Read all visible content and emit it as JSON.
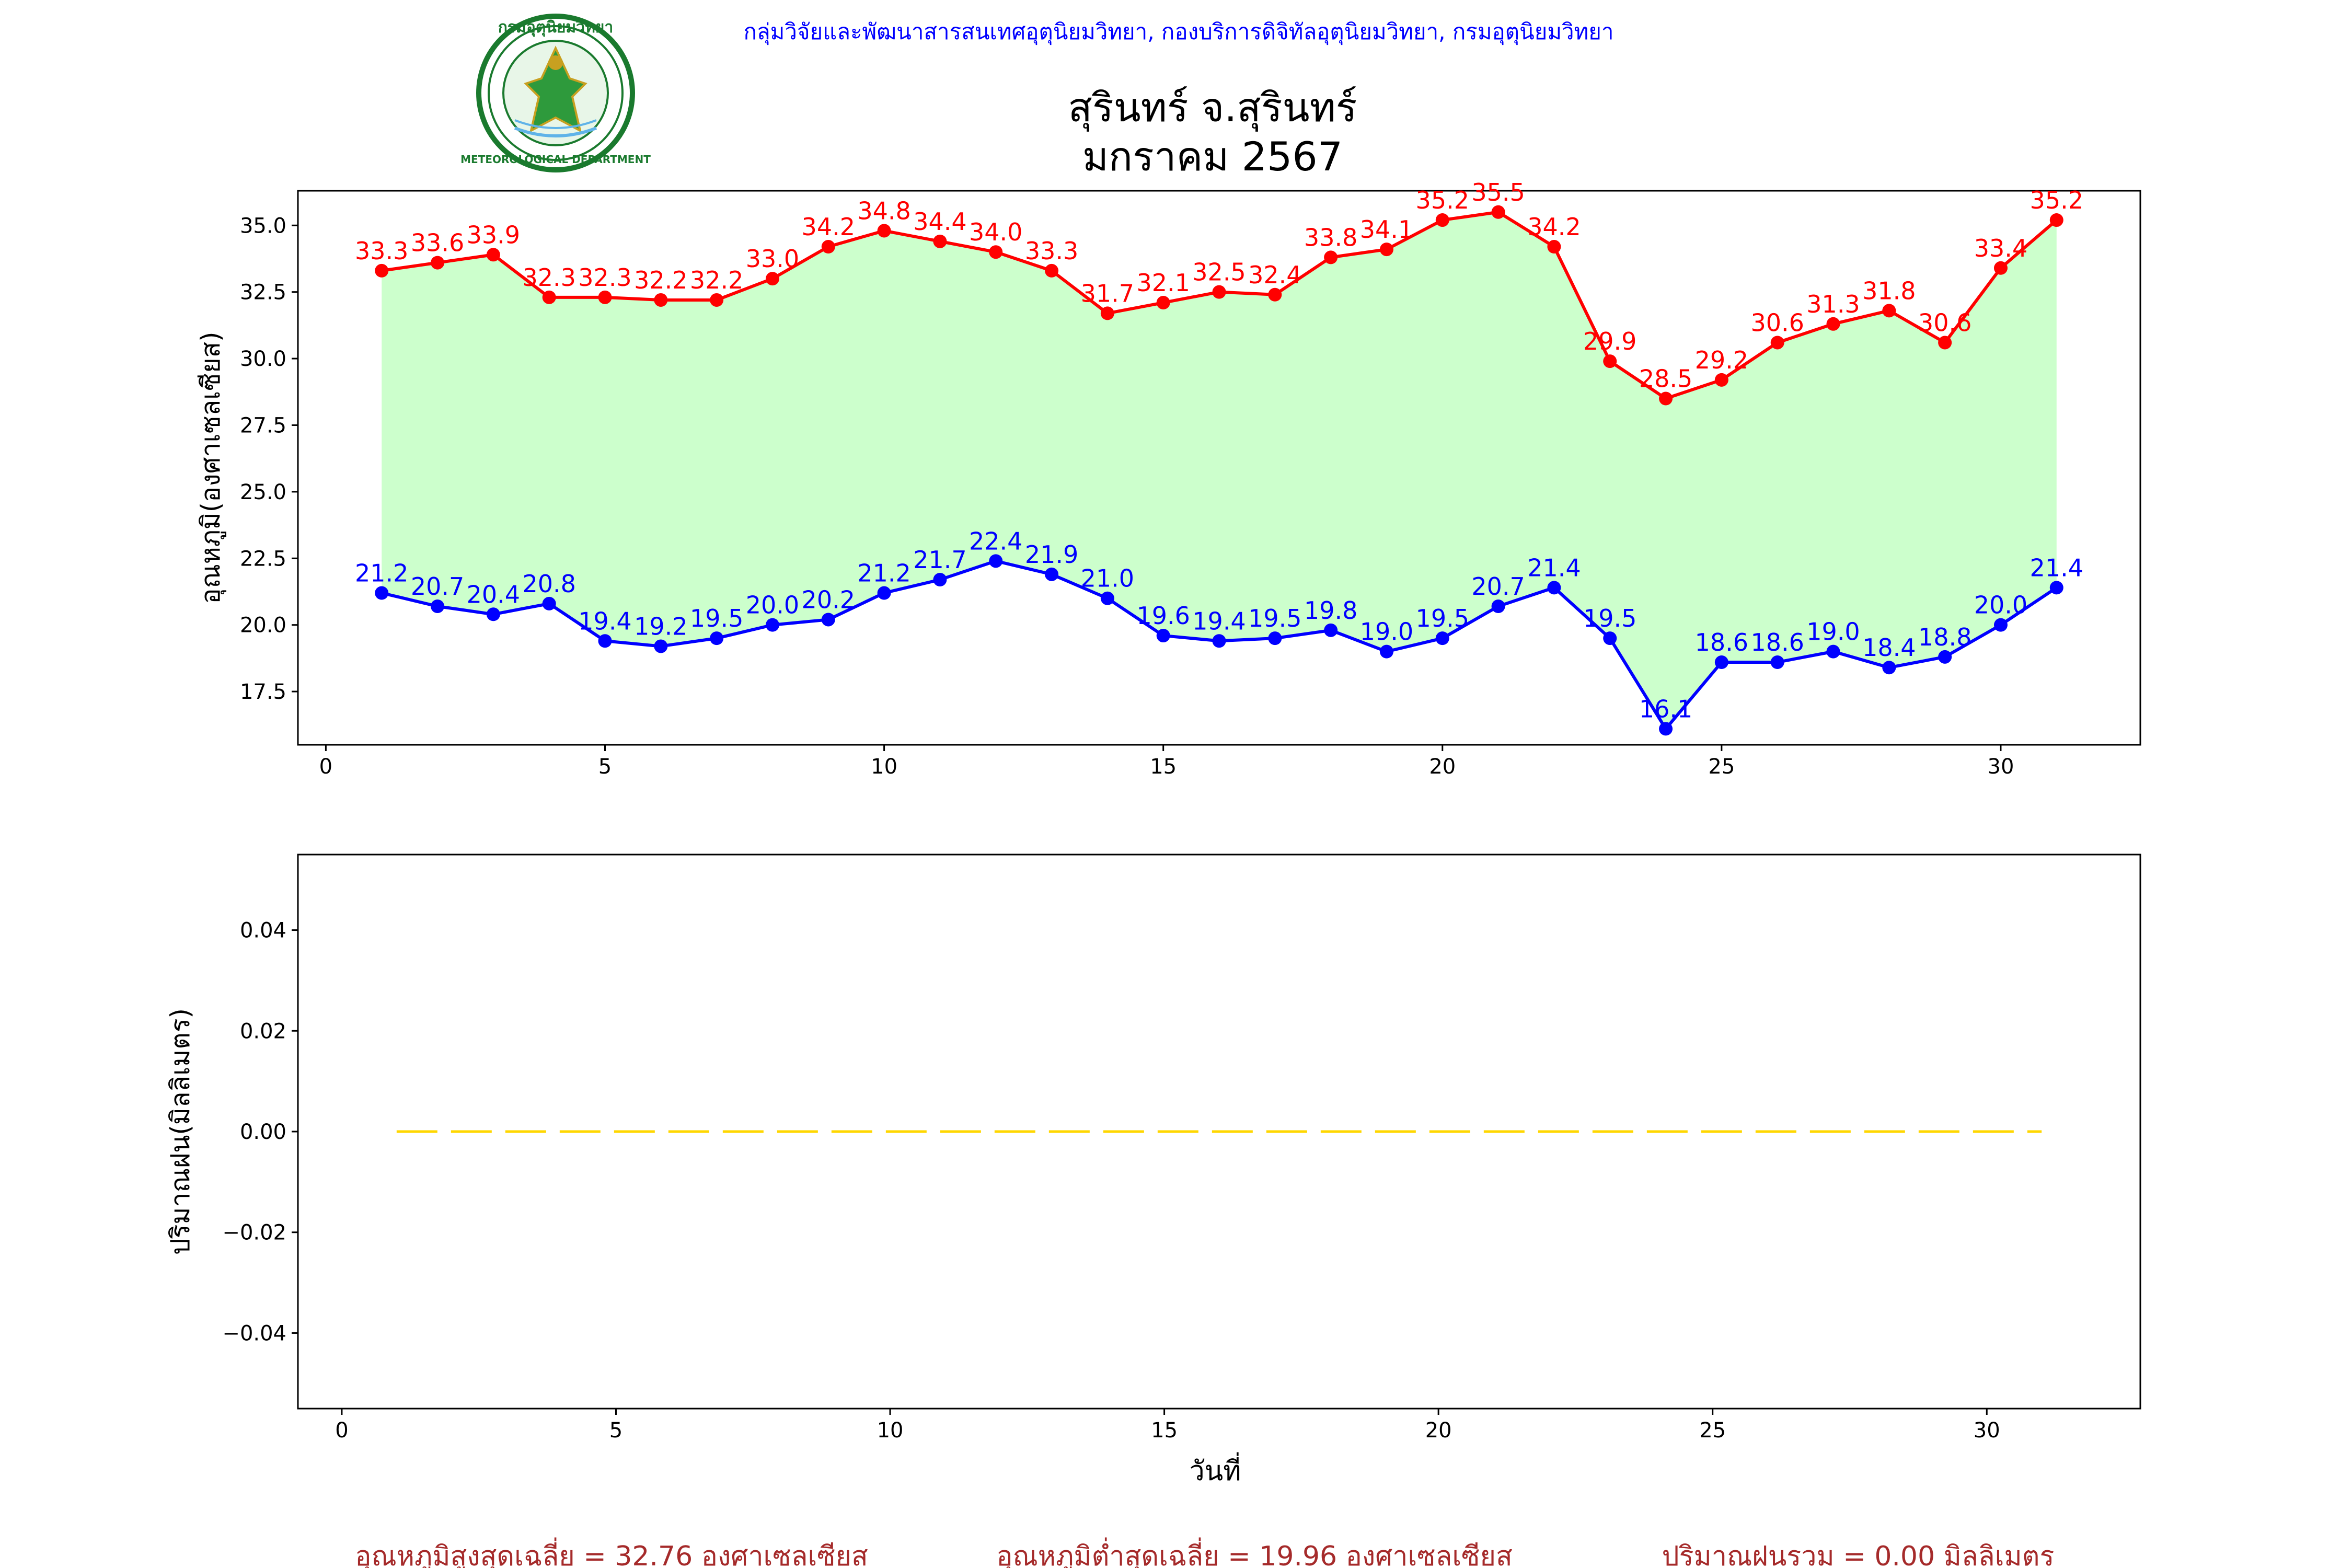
{
  "header": {
    "org_line": "กลุ่มวิจัยและพัฒนาสารสนเทศอุตุนิยมวิทยา, กองบริการดิจิทัลอุตุนิยมวิทยา, กรมอุตุนิยมวิทยา",
    "title_line1": "สุรินทร์ จ.สุรินทร์",
    "title_line2": "มกราคม 2567",
    "logo_top_text": "กรมอุตุนิยมวิทยา",
    "logo_bottom_text": "METEOROLOGICAL DEPARTMENT"
  },
  "colors": {
    "max_line": "#ff0000",
    "min_line": "#0000ff",
    "fill": "#ccffcc",
    "rain_line": "#ffd700",
    "org_text": "#0000ff",
    "summary_text": "#a52a2a",
    "logo_green": "#1a7a2e"
  },
  "chart_data": [
    {
      "type": "line",
      "ylabel": "อุณหภูมิ(องศาเซลเซียส)",
      "xlabel": "",
      "xlim": [
        -0.5,
        32.5
      ],
      "ylim": [
        15.5,
        36.3
      ],
      "xticks": [
        0,
        5,
        10,
        15,
        20,
        25,
        30
      ],
      "yticks": [
        17.5,
        20.0,
        22.5,
        25.0,
        27.5,
        30.0,
        32.5,
        35.0
      ],
      "grid": false,
      "fill_between": true,
      "x": [
        1,
        2,
        3,
        4,
        5,
        6,
        7,
        8,
        9,
        10,
        11,
        12,
        13,
        14,
        15,
        16,
        17,
        18,
        19,
        20,
        21,
        22,
        23,
        24,
        25,
        26,
        27,
        28,
        29,
        30,
        31
      ],
      "series": [
        {
          "key": "max",
          "values": [
            33.3,
            33.6,
            33.9,
            32.3,
            32.3,
            32.2,
            32.2,
            33.0,
            34.2,
            34.8,
            34.4,
            34.0,
            33.3,
            31.7,
            32.1,
            32.5,
            32.4,
            33.8,
            34.1,
            35.2,
            35.5,
            34.2,
            29.9,
            28.5,
            29.2,
            30.6,
            31.3,
            31.8,
            30.6,
            33.4,
            35.2
          ]
        },
        {
          "key": "min",
          "values": [
            21.2,
            20.7,
            20.4,
            20.8,
            19.4,
            19.2,
            19.5,
            20.0,
            20.2,
            21.2,
            21.7,
            22.4,
            21.9,
            21.0,
            19.6,
            19.4,
            19.5,
            19.8,
            19.0,
            19.5,
            20.7,
            21.4,
            19.5,
            16.1,
            18.6,
            18.6,
            19.0,
            18.4,
            18.8,
            20.0,
            21.4
          ]
        }
      ]
    },
    {
      "type": "line",
      "ylabel": "ปริมาณฝน(มิลลิเมตร)",
      "xlabel": "วันที่",
      "xlim": [
        -0.8,
        32.8
      ],
      "ylim": [
        -0.055,
        0.055
      ],
      "xticks": [
        0,
        5,
        10,
        15,
        20,
        25,
        30
      ],
      "yticks": [
        -0.04,
        -0.02,
        0.0,
        0.02,
        0.04
      ],
      "grid": false,
      "line_style": "dashed",
      "x": [
        1,
        2,
        3,
        4,
        5,
        6,
        7,
        8,
        9,
        10,
        11,
        12,
        13,
        14,
        15,
        16,
        17,
        18,
        19,
        20,
        21,
        22,
        23,
        24,
        25,
        26,
        27,
        28,
        29,
        30,
        31
      ],
      "series": [
        {
          "key": "rain",
          "values": [
            0,
            0,
            0,
            0,
            0,
            0,
            0,
            0,
            0,
            0,
            0,
            0,
            0,
            0,
            0,
            0,
            0,
            0,
            0,
            0,
            0,
            0,
            0,
            0,
            0,
            0,
            0,
            0,
            0,
            0,
            0
          ]
        }
      ]
    }
  ],
  "summary": {
    "avg_max": "อุณหภูมิสูงสุดเฉลี่ย = 32.76 องศาเซลเซียส",
    "avg_min": "อุณหภูมิต่ำสุดเฉลี่ย = 19.96 องศาเซลเซียส",
    "rain_total": "ปริมาณฝนรวม = 0.00 มิลลิเมตร"
  }
}
